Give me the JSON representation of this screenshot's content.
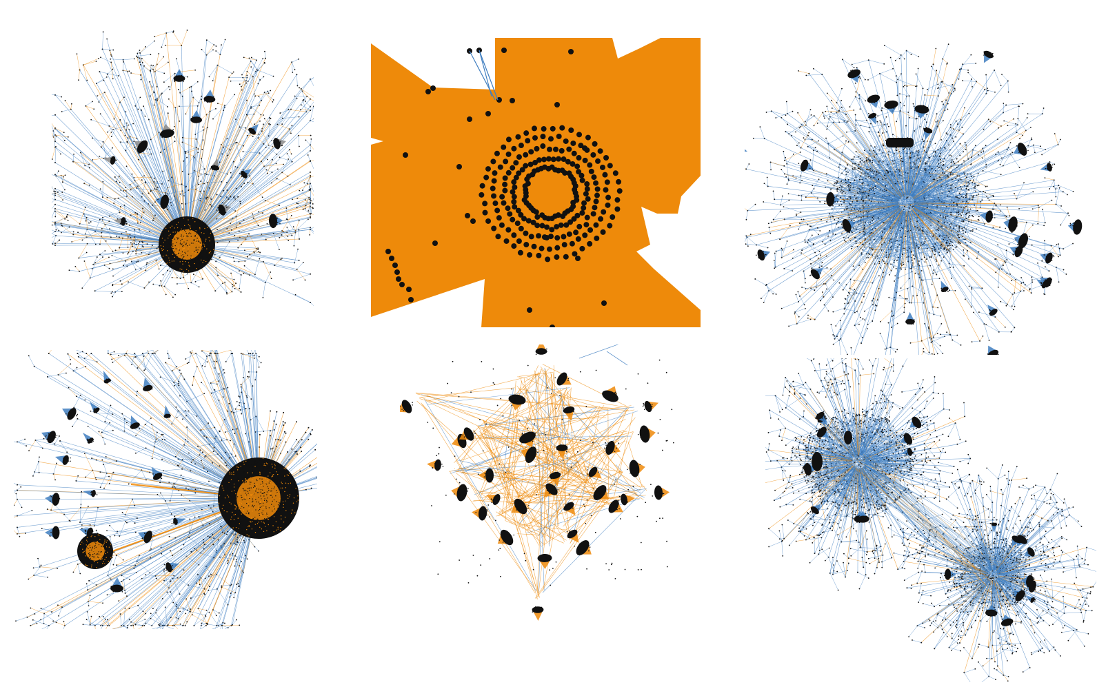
{
  "figure": {
    "panel_count": 6,
    "colors": {
      "orange": "#EE8A0A",
      "blue": "#3F7EC0",
      "node": "#111111",
      "background": "#FFFFFF"
    },
    "panels": [
      {
        "id": "top-left",
        "style": "hub-and-spokes",
        "dominant_edge_color": "blue",
        "hub_fill": "orange",
        "small_cluster_count": 14
      },
      {
        "id": "top-center",
        "style": "zoomed-detail",
        "dominant_edge_color": "orange",
        "ring_node_count": 230,
        "scattered_node_count": 30
      },
      {
        "id": "top-right",
        "style": "dense-core",
        "dominant_edge_color": "blue",
        "small_cluster_count": 28
      },
      {
        "id": "bottom-left",
        "style": "two-hubs-fan",
        "dominant_edge_color": "blue",
        "hub_fill": "orange",
        "small_cluster_count": 18
      },
      {
        "id": "bottom-center",
        "style": "fan-clusters",
        "dominant_edge_color": "orange",
        "small_cluster_count": 34
      },
      {
        "id": "bottom-right",
        "style": "twin-dense-cores",
        "dominant_edge_color": "blue",
        "small_cluster_count": 22
      }
    ]
  }
}
